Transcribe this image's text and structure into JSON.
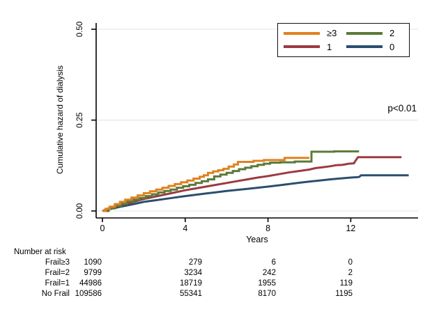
{
  "colors": {
    "background": "#ffffff",
    "axis": "#000000",
    "gridline": "#e3eaea",
    "legend_border": "#111111",
    "text": "#000000"
  },
  "annotation": "p<0.01",
  "chart_data": {
    "type": "line",
    "subtype": "cumulative-hazard-step-curves",
    "title": "",
    "xlabel": "Years",
    "ylabel": "Cumulative hazard of dialysis",
    "xlim": [
      0,
      15.2
    ],
    "ylim": [
      0,
      0.52
    ],
    "grid": "horizontal-only",
    "legend_position": "top-right",
    "xticks": [
      {
        "label": "0",
        "value": 0
      },
      {
        "label": "4",
        "value": 4
      },
      {
        "label": "8",
        "value": 8
      },
      {
        "label": "12",
        "value": 12
      }
    ],
    "yticks": [
      {
        "label": "0.00",
        "value": 0
      },
      {
        "label": "0.25",
        "value": 0.25
      },
      {
        "label": "0.50",
        "value": 0.5
      }
    ],
    "series": [
      {
        "name": "≥3",
        "color": "#E0811F",
        "interp": "step",
        "points": [
          [
            0,
            0
          ],
          [
            0.15,
            0.006
          ],
          [
            0.35,
            0.012
          ],
          [
            0.6,
            0.019
          ],
          [
            0.85,
            0.025
          ],
          [
            1.1,
            0.031
          ],
          [
            1.4,
            0.037
          ],
          [
            1.7,
            0.043
          ],
          [
            2.0,
            0.049
          ],
          [
            2.3,
            0.054
          ],
          [
            2.6,
            0.059
          ],
          [
            2.9,
            0.064
          ],
          [
            3.2,
            0.069
          ],
          [
            3.5,
            0.074
          ],
          [
            3.8,
            0.079
          ],
          [
            4.1,
            0.084
          ],
          [
            4.4,
            0.089
          ],
          [
            4.7,
            0.094
          ],
          [
            4.9,
            0.098
          ],
          [
            5.1,
            0.105
          ],
          [
            5.35,
            0.109
          ],
          [
            5.6,
            0.112
          ],
          [
            5.85,
            0.116
          ],
          [
            6.1,
            0.122
          ],
          [
            6.35,
            0.128
          ],
          [
            6.55,
            0.135
          ],
          [
            7.3,
            0.138
          ],
          [
            7.8,
            0.14
          ],
          [
            8.8,
            0.146
          ],
          [
            10.0,
            0.146
          ]
        ]
      },
      {
        "name": "2",
        "color": "#5B7A3A",
        "interp": "step",
        "points": [
          [
            0,
            0
          ],
          [
            0.3,
            0.007
          ],
          [
            0.6,
            0.014
          ],
          [
            0.9,
            0.02
          ],
          [
            1.2,
            0.026
          ],
          [
            1.5,
            0.031
          ],
          [
            1.8,
            0.036
          ],
          [
            2.1,
            0.041
          ],
          [
            2.4,
            0.046
          ],
          [
            2.7,
            0.051
          ],
          [
            3.0,
            0.055
          ],
          [
            3.3,
            0.059
          ],
          [
            3.6,
            0.064
          ],
          [
            3.9,
            0.068
          ],
          [
            4.2,
            0.072
          ],
          [
            4.5,
            0.077
          ],
          [
            4.8,
            0.082
          ],
          [
            5.1,
            0.087
          ],
          [
            5.4,
            0.095
          ],
          [
            5.7,
            0.1
          ],
          [
            6.0,
            0.105
          ],
          [
            6.3,
            0.11
          ],
          [
            6.6,
            0.115
          ],
          [
            6.9,
            0.119
          ],
          [
            7.2,
            0.123
          ],
          [
            7.5,
            0.127
          ],
          [
            7.8,
            0.13
          ],
          [
            8.1,
            0.133
          ],
          [
            8.6,
            0.134
          ],
          [
            9.3,
            0.136
          ],
          [
            10.1,
            0.163
          ],
          [
            11.2,
            0.164
          ],
          [
            12.4,
            0.164
          ]
        ]
      },
      {
        "name": "1",
        "color": "#9C3A40",
        "interp": "linear",
        "points": [
          [
            0,
            0
          ],
          [
            0.5,
            0.009
          ],
          [
            1,
            0.017
          ],
          [
            1.5,
            0.025
          ],
          [
            2,
            0.033
          ],
          [
            2.5,
            0.039
          ],
          [
            3,
            0.045
          ],
          [
            3.5,
            0.051
          ],
          [
            4,
            0.057
          ],
          [
            4.5,
            0.062
          ],
          [
            5,
            0.067
          ],
          [
            5.5,
            0.072
          ],
          [
            6,
            0.077
          ],
          [
            6.5,
            0.082
          ],
          [
            7,
            0.087
          ],
          [
            7.5,
            0.092
          ],
          [
            8,
            0.096
          ],
          [
            8.5,
            0.101
          ],
          [
            9,
            0.106
          ],
          [
            9.5,
            0.11
          ],
          [
            10,
            0.114
          ],
          [
            10.3,
            0.118
          ],
          [
            10.6,
            0.12
          ],
          [
            11,
            0.123
          ],
          [
            11.3,
            0.126
          ],
          [
            11.6,
            0.127
          ],
          [
            11.9,
            0.13
          ],
          [
            12.15,
            0.131
          ],
          [
            12.25,
            0.14
          ],
          [
            12.35,
            0.148
          ],
          [
            14.45,
            0.148
          ]
        ]
      },
      {
        "name": "0",
        "color": "#2B4E6F",
        "interp": "linear",
        "points": [
          [
            0,
            0
          ],
          [
            0.5,
            0.007
          ],
          [
            1,
            0.013
          ],
          [
            1.5,
            0.019
          ],
          [
            2,
            0.025
          ],
          [
            2.5,
            0.029
          ],
          [
            3,
            0.033
          ],
          [
            3.5,
            0.037
          ],
          [
            4,
            0.041
          ],
          [
            4.5,
            0.0445
          ],
          [
            5,
            0.048
          ],
          [
            5.5,
            0.0515
          ],
          [
            6,
            0.055
          ],
          [
            6.5,
            0.058
          ],
          [
            7,
            0.061
          ],
          [
            7.5,
            0.064
          ],
          [
            8,
            0.067
          ],
          [
            8.5,
            0.0705
          ],
          [
            9,
            0.074
          ],
          [
            9.5,
            0.0775
          ],
          [
            10,
            0.081
          ],
          [
            10.5,
            0.084
          ],
          [
            11,
            0.087
          ],
          [
            11.5,
            0.0895
          ],
          [
            12,
            0.092
          ],
          [
            12.4,
            0.0935
          ],
          [
            12.5,
            0.098
          ],
          [
            14.8,
            0.098
          ]
        ]
      }
    ],
    "risk_table": {
      "title": "Number at risk",
      "rows": [
        {
          "label": "Frail≥3",
          "values": [
            "1090",
            "279",
            "6",
            "0"
          ]
        },
        {
          "label": "Frail=2",
          "values": [
            "9799",
            "3234",
            "242",
            "2"
          ]
        },
        {
          "label": "Frail=1",
          "values": [
            "44986",
            "18719",
            "1955",
            "119"
          ]
        },
        {
          "label": "No Frail",
          "values": [
            "109586",
            "55341",
            "8170",
            "1195"
          ]
        }
      ]
    }
  }
}
